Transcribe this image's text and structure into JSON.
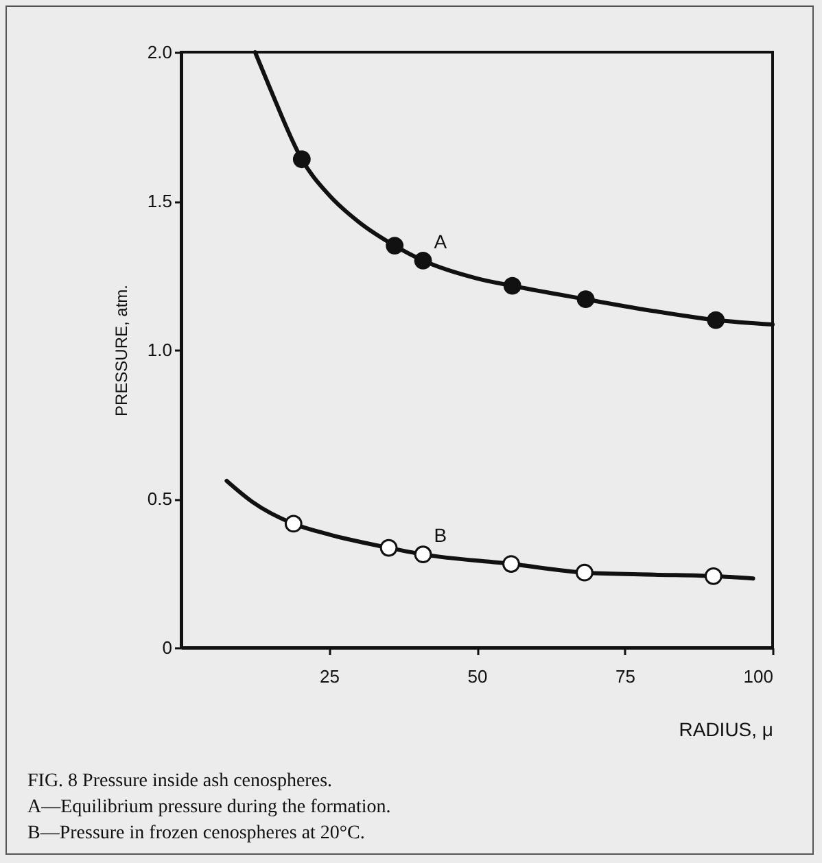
{
  "chart_data": {
    "type": "line",
    "title": "FIG. 8   Pressure inside ash cenospheres.",
    "xlabel": "RADIUS, μ",
    "ylabel": "PRESSURE, atm.",
    "xlim": [
      0,
      100
    ],
    "xticks": [
      25,
      50,
      75,
      100
    ],
    "ylim": [
      0,
      2
    ],
    "yticks": [
      0,
      0.5,
      {
        "value": 1,
        "label": "1.0"
      },
      1.5,
      {
        "value": 2,
        "label": "2.0"
      }
    ],
    "grid": false,
    "series": [
      {
        "name": "A",
        "color": "#111111",
        "marker": "none",
        "x": [
          12.5,
          15,
          20.4,
          25,
          30,
          36.1,
          40.9,
          50,
          56,
          68.4,
          80,
          90.4,
          100
        ],
        "values": [
          2.0,
          1.88,
          1.64,
          1.52,
          1.43,
          1.35,
          1.3,
          1.24,
          1.215,
          1.17,
          1.13,
          1.1,
          1.085
        ]
      },
      {
        "type": "scatter",
        "color": "#111111",
        "marker": "circle",
        "x": [
          20.4,
          36.1,
          40.9,
          56,
          68.4,
          90.4
        ],
        "values": [
          1.64,
          1.35,
          1.3,
          1.215,
          1.17,
          1.1
        ]
      },
      {
        "name": "B",
        "color": "#111111",
        "marker": "none",
        "x": [
          7.7,
          12,
          19,
          25,
          35.1,
          40.9,
          55.8,
          68.2,
          80,
          90,
          96.7
        ],
        "values": [
          0.56,
          0.49,
          0.416,
          0.38,
          0.335,
          0.313,
          0.281,
          0.252,
          0.245,
          0.24,
          0.232
        ]
      },
      {
        "type": "scatter",
        "color": "#ffffff",
        "marker": "circle",
        "x": [
          19,
          35.1,
          40.9,
          55.8,
          68.2,
          90
        ],
        "values": [
          0.416,
          0.335,
          0.313,
          0.281,
          0.252,
          0.24
        ]
      }
    ],
    "annotations": [
      "A—Equilibrium pressure during the formation.",
      "B—Pressure in frozen cenospheres at 20°C."
    ]
  }
}
